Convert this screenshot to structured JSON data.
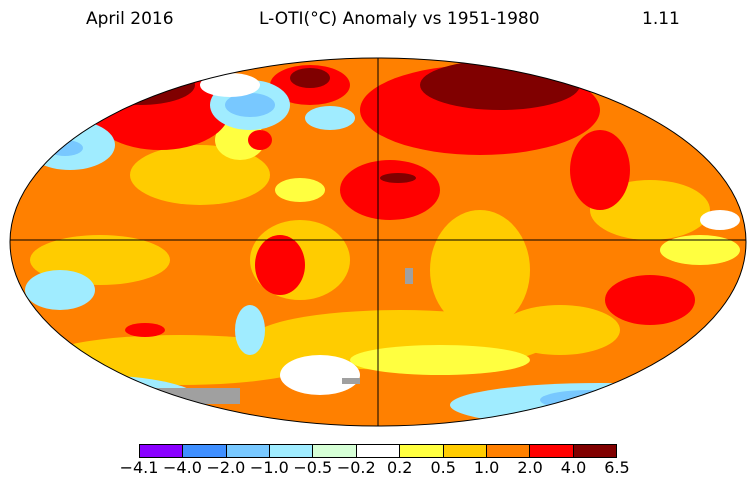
{
  "header": {
    "date": "April 2016",
    "title": "L-OTI(°C) Anomaly vs 1951-1980",
    "global_mean": "1.11"
  },
  "colorbar": {
    "ticks": [
      "−4.1",
      "−4.0",
      "−2.0",
      "−1.0",
      "−0.5",
      "−0.2",
      "0.2",
      "0.5",
      "1.0",
      "2.0",
      "4.0",
      "6.5"
    ],
    "colors": [
      "#8a00ff",
      "#3f8fff",
      "#78c8ff",
      "#a0ecff",
      "#d6ffd6",
      "#ffffff",
      "#ffff40",
      "#ffcc00",
      "#ff8000",
      "#ff0000",
      "#800000"
    ]
  },
  "map": {
    "projection": "Robinson",
    "missing_color": "#a0a0a0",
    "grid_lines": [
      "equator",
      "prime-meridian"
    ]
  }
}
